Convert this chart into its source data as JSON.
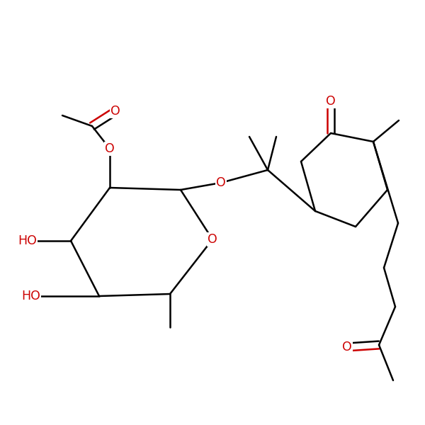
{
  "bg_color": "#ffffff",
  "bond_color": "#000000",
  "oxygen_color": "#cc0000",
  "line_width": 1.8,
  "font_size": 12.5,
  "figsize": [
    6.0,
    6.0
  ],
  "dpi": 100,
  "xlim": [
    0,
    10
  ],
  "ylim": [
    0,
    10
  ]
}
